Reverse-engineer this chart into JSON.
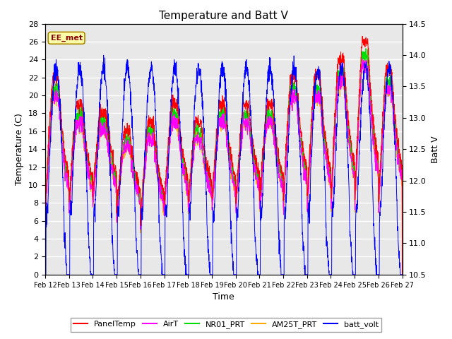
{
  "title": "Temperature and Batt V",
  "xlabel": "Time",
  "ylabel_left": "Temperature (C)",
  "ylabel_right": "Batt V",
  "ylim_left": [
    0,
    28
  ],
  "ylim_right": [
    10.5,
    14.5
  ],
  "yticks_left": [
    0,
    2,
    4,
    6,
    8,
    10,
    12,
    14,
    16,
    18,
    20,
    22,
    24,
    26,
    28
  ],
  "yticks_right": [
    10.5,
    11.0,
    11.5,
    12.0,
    12.5,
    13.0,
    13.5,
    14.0,
    14.5
  ],
  "xtick_labels": [
    "Feb 12",
    "Feb 13",
    "Feb 14",
    "Feb 15",
    "Feb 16",
    "Feb 17",
    "Feb 18",
    "Feb 19",
    "Feb 20",
    "Feb 21",
    "Feb 22",
    "Feb 23",
    "Feb 24",
    "Feb 25",
    "Feb 26",
    "Feb 27"
  ],
  "colors": {
    "PanelTemp": "#ff0000",
    "AirT": "#ff00ff",
    "NR01_PRT": "#00dd00",
    "AM25T_PRT": "#ffaa00",
    "batt_volt": "#0000ff"
  },
  "legend_labels": [
    "PanelTemp",
    "AirT",
    "NR01_PRT",
    "AM25T_PRT",
    "batt_volt"
  ],
  "annotation_text": "EE_met",
  "annotation_fg": "#8b0000",
  "annotation_bg": "#ffffaa",
  "annotation_edge": "#aa8800",
  "plot_bg": "#e8e8e8",
  "fig_bg": "#ffffff",
  "grid_color": "#ffffff",
  "num_days": 15,
  "pts_per_day": 144,
  "seed": 12345
}
